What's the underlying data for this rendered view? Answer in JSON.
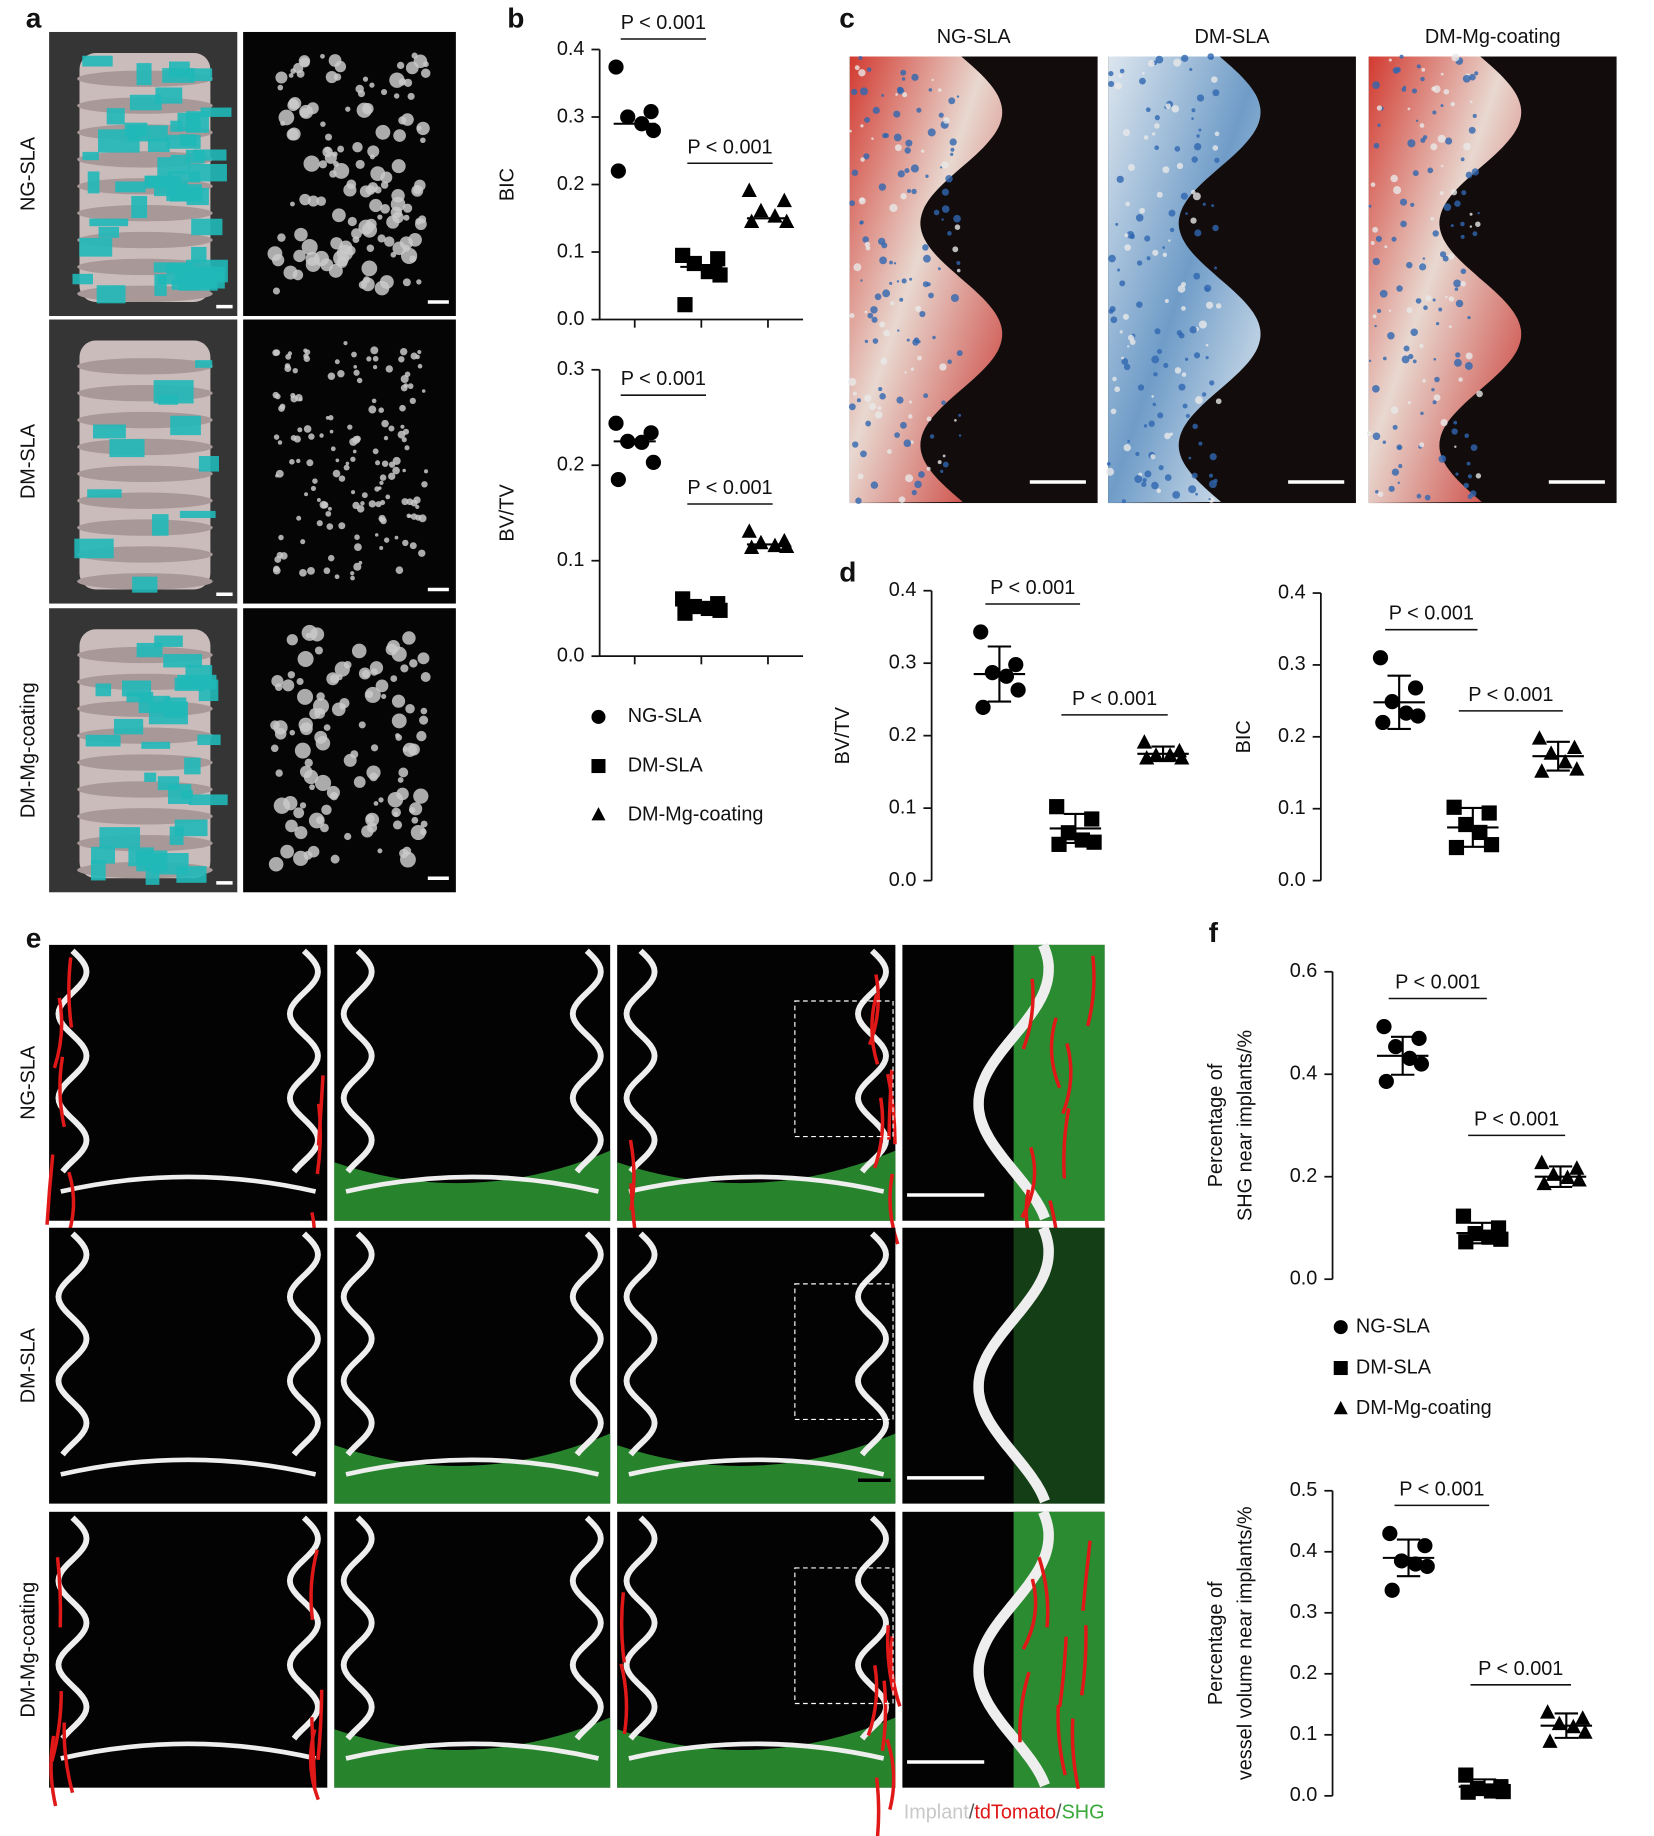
{
  "panel_labels": [
    "a",
    "b",
    "c",
    "d",
    "e",
    "f"
  ],
  "panel_a": {
    "row_labels": [
      "NG-SLA",
      "DM-SLA",
      "DM-Mg-coating"
    ]
  },
  "panel_c": {
    "column_titles": [
      "NG-SLA",
      "DM-SLA",
      "DM-Mg-coating"
    ]
  },
  "panel_e": {
    "row_labels": [
      "NG-SLA",
      "DM-SLA",
      "DM-Mg-coating"
    ],
    "caption": [
      {
        "text": "Implant",
        "color": "#c8c8c8"
      },
      {
        "text": "/",
        "color": "#555555"
      },
      {
        "text": "tdTomato",
        "color": "#e01818"
      },
      {
        "text": "/",
        "color": "#555555"
      },
      {
        "text": "SHG",
        "color": "#3aa83a"
      }
    ]
  },
  "chart_data": [
    {
      "type": "dot",
      "ylabel": [
        "BIC"
      ],
      "ylim": [
        0,
        0.4
      ],
      "yticks": [
        {
          "value": 0,
          "label": "0.0"
        },
        0.1,
        0.2,
        0.3,
        0.4
      ],
      "series": [
        {
          "name": "NG-SLA",
          "marker": "circle",
          "color": "#000000",
          "values": [
            0.374,
            0.308,
            0.3,
            0.29,
            0.28,
            0.22
          ],
          "mean": 0.29
        },
        {
          "name": "DM-SLA",
          "marker": "square",
          "color": "#000000",
          "values": [
            0.095,
            0.09,
            0.083,
            0.071,
            0.066,
            0.022
          ],
          "mean": 0.078
        },
        {
          "name": "DM-Mg-coating",
          "marker": "triangle",
          "color": "#000000",
          "values": [
            0.19,
            0.175,
            0.16,
            0.152,
            0.144,
            0.144
          ],
          "mean": 0.15
        }
      ],
      "annotations": [
        "P < 0.001",
        "P < 0.001"
      ]
    },
    {
      "type": "dot",
      "ylabel": [
        "BV/TV"
      ],
      "ylim": [
        0,
        0.3
      ],
      "yticks": [
        {
          "value": 0,
          "label": "0.0"
        },
        0.1,
        0.2,
        0.3
      ],
      "series": [
        {
          "marker": "circle",
          "color": "#000000",
          "values": [
            0.244,
            0.234,
            0.225,
            0.224,
            0.203,
            0.185
          ],
          "mean": 0.225
        },
        {
          "marker": "square",
          "color": "#000000",
          "values": [
            0.06,
            0.055,
            0.052,
            0.05,
            0.048,
            0.045
          ],
          "mean": 0.052
        },
        {
          "marker": "triangle",
          "color": "#000000",
          "values": [
            0.13,
            0.12,
            0.118,
            0.115,
            0.114,
            0.113
          ],
          "mean": 0.117
        }
      ],
      "annotations": [
        "P < 0.001",
        "P < 0.001"
      ]
    },
    {
      "type": "dot",
      "ylabel": [
        "BV/TV"
      ],
      "ylim": [
        0,
        0.4
      ],
      "yticks": [
        {
          "value": 0,
          "label": "0.0"
        },
        0.1,
        0.2,
        0.3,
        0.4
      ],
      "series": [
        {
          "marker": "circle",
          "color": "#000000",
          "values": [
            0.343,
            0.298,
            0.287,
            0.282,
            0.263,
            0.239
          ],
          "mean": 0.285,
          "sd": 0.038
        },
        {
          "marker": "square",
          "color": "#000000",
          "values": [
            0.102,
            0.085,
            0.066,
            0.056,
            0.053,
            0.05
          ],
          "mean": 0.072,
          "sd": 0.02
        },
        {
          "marker": "triangle",
          "color": "#000000",
          "values": [
            0.19,
            0.178,
            0.172,
            0.172,
            0.168,
            0.168
          ],
          "mean": 0.175,
          "sd": 0.01
        }
      ],
      "annotations": [
        "P < 0.001",
        "P < 0.001"
      ]
    },
    {
      "type": "dot",
      "ylabel": [
        "BIC"
      ],
      "ylim": [
        0,
        0.4
      ],
      "yticks": [
        {
          "value": 0,
          "label": "0.0"
        },
        0.1,
        0.2,
        0.3,
        0.4
      ],
      "series": [
        {
          "marker": "circle",
          "color": "#000000",
          "values": [
            0.31,
            0.268,
            0.249,
            0.233,
            0.229,
            0.22
          ],
          "mean": 0.248,
          "sd": 0.037
        },
        {
          "marker": "square",
          "color": "#000000",
          "values": [
            0.102,
            0.094,
            0.078,
            0.067,
            0.05,
            0.046
          ],
          "mean": 0.074,
          "sd": 0.027
        },
        {
          "marker": "triangle",
          "color": "#000000",
          "values": [
            0.197,
            0.184,
            0.176,
            0.164,
            0.154,
            0.151
          ],
          "mean": 0.173,
          "sd": 0.02
        }
      ],
      "annotations": [
        "P < 0.001",
        "P < 0.001"
      ]
    },
    {
      "type": "dot",
      "ylabel": [
        "Percentage of",
        "SHG near implants/%"
      ],
      "ylim": [
        0,
        0.6
      ],
      "yticks": [
        {
          "value": 0,
          "label": "0.0"
        },
        0.2,
        0.4,
        0.6
      ],
      "series": [
        {
          "name": "NG-SLA",
          "marker": "circle",
          "color": "#000000",
          "values": [
            0.493,
            0.47,
            0.454,
            0.431,
            0.42,
            0.386
          ],
          "mean": 0.436,
          "sd": 0.037
        },
        {
          "name": "DM-SLA",
          "marker": "square",
          "color": "#000000",
          "values": [
            0.123,
            0.1,
            0.089,
            0.082,
            0.078,
            0.073
          ],
          "mean": 0.09,
          "sd": 0.02
        },
        {
          "name": "DM-Mg-coating",
          "marker": "triangle",
          "color": "#000000",
          "values": [
            0.226,
            0.215,
            0.203,
            0.197,
            0.192,
            0.185
          ],
          "mean": 0.2,
          "sd": 0.02
        }
      ],
      "annotations": [
        "P < 0.001",
        "P < 0.001"
      ]
    },
    {
      "type": "dot",
      "ylabel": [
        "Percentage of",
        "vessel volume near implants/%"
      ],
      "ylim": [
        0,
        0.5
      ],
      "yticks": [
        {
          "value": 0,
          "label": "0.0"
        },
        0.1,
        0.2,
        0.3,
        0.4,
        0.5
      ],
      "series": [
        {
          "marker": "circle",
          "color": "#000000",
          "values": [
            0.43,
            0.41,
            0.385,
            0.38,
            0.376,
            0.337
          ],
          "mean": 0.39,
          "sd": 0.03
        },
        {
          "marker": "square",
          "color": "#000000",
          "values": [
            0.034,
            0.015,
            0.012,
            0.008,
            0.007,
            0.006
          ],
          "mean": 0.015,
          "sd": 0.012
        },
        {
          "marker": "triangle",
          "color": "#000000",
          "values": [
            0.136,
            0.126,
            0.117,
            0.112,
            0.103,
            0.088
          ],
          "mean": 0.115,
          "sd": 0.02
        }
      ],
      "annotations": [
        "P < 0.001",
        "P < 0.001"
      ]
    }
  ]
}
